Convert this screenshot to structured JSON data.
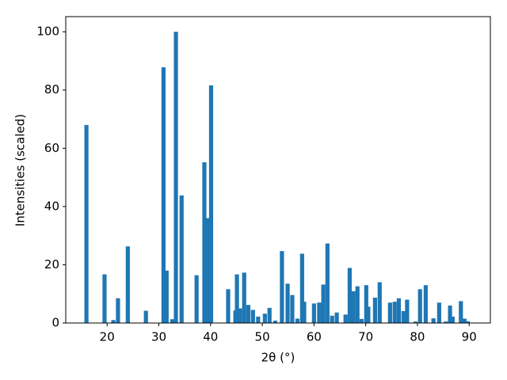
{
  "chart_data": {
    "type": "bar",
    "xlabel": "2θ (°)",
    "ylabel": "Intensities (scaled)",
    "color": "#1f77b4",
    "x": [
      16.0,
      19.5,
      21.2,
      22.1,
      24.0,
      27.5,
      30.9,
      31.5,
      32.6,
      33.3,
      34.4,
      37.3,
      38.8,
      39.4,
      40.1,
      43.4,
      44.8,
      45.1,
      45.7,
      46.5,
      47.3,
      48.2,
      49.2,
      50.5,
      51.4,
      52.5,
      53.8,
      54.9,
      55.8,
      56.8,
      57.7,
      58.1,
      60.0,
      61.0,
      61.8,
      62.6,
      63.5,
      64.4,
      66.1,
      66.9,
      67.6,
      68.4,
      69.2,
      70.1,
      70.5,
      71.8,
      72.7,
      74.7,
      75.6,
      76.4,
      77.3,
      78.0,
      79.6,
      80.5,
      81.6,
      83.1,
      84.2,
      85.5,
      86.3,
      86.8,
      88.4,
      89.1,
      89.7
    ],
    "values": [
      68,
      16.7,
      1,
      8.5,
      26.3,
      4.2,
      87.8,
      18,
      1.3,
      100,
      43.8,
      16.4,
      55.2,
      36,
      81.6,
      11.6,
      4.3,
      16.7,
      5,
      17.3,
      6.2,
      4.5,
      2.2,
      3.2,
      5.2,
      0.8,
      24.7,
      13.5,
      9.6,
      1.5,
      23.8,
      7.3,
      6.7,
      7,
      13.2,
      27.3,
      2.5,
      3.6,
      2.9,
      18.9,
      10.9,
      12.6,
      1.4,
      13,
      5.6,
      8.7,
      14,
      7,
      7.3,
      8.5,
      4.1,
      8,
      0.5,
      11.6,
      13,
      1.6,
      7,
      0.5,
      6,
      2.2,
      7.5,
      1.5,
      0.6
    ],
    "xlim": [
      12,
      94.1
    ],
    "ylim": [
      0,
      105.2
    ],
    "xticks": [
      20,
      30,
      40,
      50,
      60,
      70,
      80,
      90
    ],
    "yticks": [
      0,
      20,
      40,
      60,
      80,
      100
    ]
  }
}
